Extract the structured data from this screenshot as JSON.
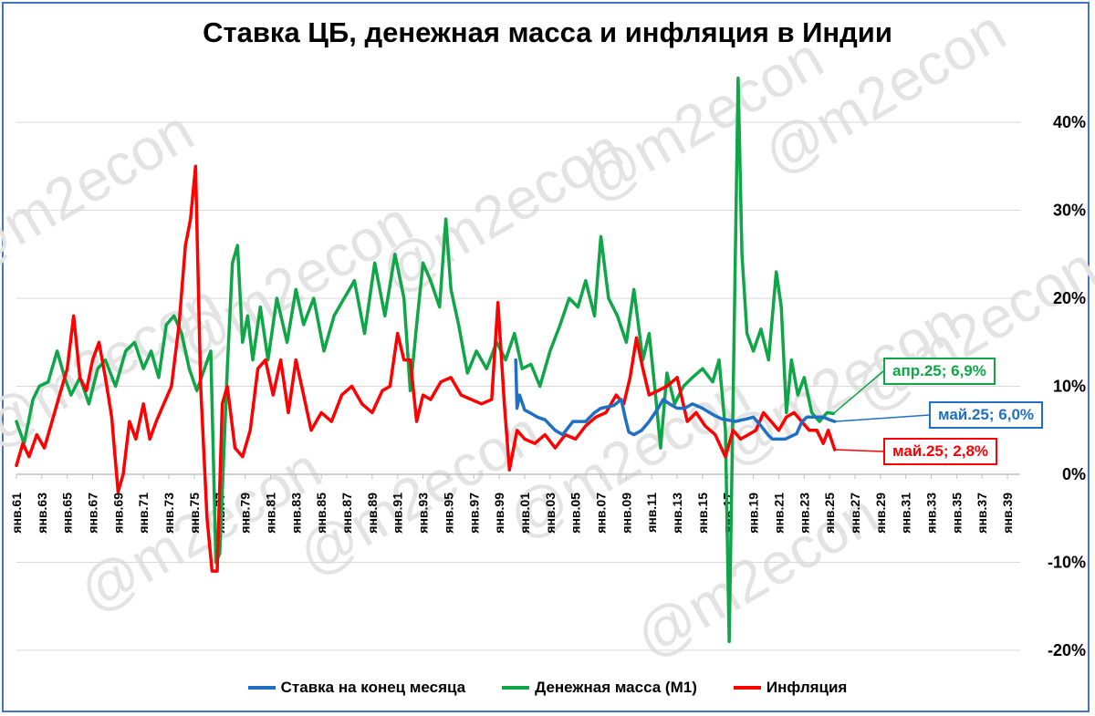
{
  "chart_data": {
    "type": "line",
    "title": "Ставка ЦБ, денежная масса и инфляция в Индии",
    "watermark": "@m2econ",
    "y_axis": {
      "position": "right",
      "ylim": [
        -20,
        45
      ],
      "ticks": [
        -20,
        -10,
        0,
        10,
        20,
        30,
        40
      ],
      "tick_labels": [
        "-20%",
        "-10%",
        "0%",
        "10%",
        "20%",
        "30%",
        "40%"
      ]
    },
    "x_axis": {
      "xlim": [
        1961.0,
        2040.0
      ],
      "tick_labels": [
        "янв.61",
        "янв.63",
        "янв.65",
        "янв.67",
        "янв.69",
        "янв.71",
        "янв.73",
        "янв.75",
        "янв.77",
        "янв.79",
        "янв.81",
        "янв.83",
        "янв.85",
        "янв.87",
        "янв.89",
        "янв.91",
        "янв.93",
        "янв.95",
        "янв.97",
        "янв.99",
        "янв.01",
        "янв.03",
        "янв.05",
        "янв.07",
        "янв.09",
        "янв.11",
        "янв.13",
        "янв.15",
        "янв.17",
        "янв.19",
        "янв.21",
        "янв.23",
        "янв.25",
        "янв.27",
        "янв.29",
        "янв.31",
        "янв.33",
        "янв.35",
        "янв.37",
        "янв.39"
      ],
      "tick_years": [
        1961,
        1963,
        1965,
        1967,
        1969,
        1971,
        1973,
        1975,
        1977,
        1979,
        1981,
        1983,
        1985,
        1987,
        1989,
        1991,
        1993,
        1995,
        1997,
        1999,
        2001,
        2003,
        2005,
        2007,
        2009,
        2011,
        2013,
        2015,
        2017,
        2019,
        2021,
        2023,
        2025,
        2027,
        2029,
        2031,
        2033,
        2035,
        2037,
        2039
      ]
    },
    "grid": "horizontal",
    "legend_position": "bottom",
    "series": [
      {
        "name": "Ставка на конец месяца",
        "color": "#1f6fc4",
        "x": [
          2000.3,
          2000.4,
          2000.6,
          2001.0,
          2001.4,
          2002.0,
          2002.6,
          2003.4,
          2004.0,
          2004.8,
          2005.8,
          2006.5,
          2007.0,
          2008.0,
          2008.6,
          2008.9,
          2009.2,
          2009.6,
          2010.2,
          2010.8,
          2011.5,
          2011.9,
          2012.4,
          2013.0,
          2013.6,
          2014.2,
          2015.0,
          2015.8,
          2016.5,
          2017.6,
          2018.5,
          2019.0,
          2019.6,
          2020.2,
          2020.5,
          2021.5,
          2022.4,
          2022.8,
          2023.2,
          2024.5,
          2025.0,
          2025.4
        ],
        "values": [
          13.0,
          7.5,
          9.0,
          7.3,
          7.0,
          6.5,
          6.2,
          5.0,
          4.5,
          6.0,
          6.0,
          7.0,
          7.5,
          7.8,
          8.5,
          6.5,
          4.8,
          4.5,
          5.0,
          6.0,
          7.5,
          8.5,
          8.0,
          7.5,
          7.5,
          8.0,
          7.5,
          6.8,
          6.3,
          6.0,
          6.3,
          6.5,
          5.5,
          4.4,
          4.0,
          4.0,
          4.6,
          5.9,
          6.5,
          6.5,
          6.2,
          6.0
        ]
      },
      {
        "name": "Денежная масса (М1)",
        "color": "#0fa648",
        "x": [
          1961.0,
          1961.6,
          1962.3,
          1962.8,
          1963.5,
          1964.2,
          1964.8,
          1965.3,
          1966.0,
          1966.7,
          1967.4,
          1968.0,
          1968.8,
          1969.6,
          1970.3,
          1971.0,
          1971.6,
          1972.2,
          1972.8,
          1973.4,
          1974.0,
          1974.6,
          1975.2,
          1975.8,
          1976.3,
          1976.7,
          1977.0,
          1977.6,
          1978.0,
          1978.4,
          1978.8,
          1979.2,
          1979.6,
          1980.2,
          1980.8,
          1981.5,
          1982.3,
          1983.0,
          1983.6,
          1984.4,
          1985.2,
          1986.0,
          1986.8,
          1987.6,
          1988.4,
          1989.2,
          1990.0,
          1990.8,
          1991.5,
          1992.0,
          1992.5,
          1993.0,
          1993.6,
          1994.3,
          1994.8,
          1995.2,
          1995.8,
          1996.5,
          1997.2,
          1998.0,
          1998.8,
          1999.5,
          2000.2,
          2000.8,
          2001.5,
          2002.2,
          2003.0,
          2003.8,
          2004.5,
          2005.2,
          2005.8,
          2006.5,
          2007.0,
          2007.6,
          2008.3,
          2009.0,
          2009.6,
          2010.3,
          2010.8,
          2011.3,
          2011.7,
          2012.2,
          2012.8,
          2013.5,
          2014.2,
          2015.0,
          2015.8,
          2016.3,
          2016.8,
          2017.1,
          2017.4,
          2017.8,
          2018.1,
          2018.5,
          2019.0,
          2019.6,
          2020.2,
          2020.8,
          2021.2,
          2021.6,
          2022.0,
          2022.5,
          2023.0,
          2023.6,
          2024.2,
          2024.8,
          2025.3
        ],
        "values": [
          6.0,
          3.5,
          8.5,
          10.0,
          10.5,
          14.0,
          11.0,
          9.0,
          11.0,
          8.0,
          12.0,
          13.0,
          10.0,
          14.0,
          15.0,
          12.0,
          14.0,
          11.0,
          17.0,
          18.0,
          16.0,
          12.0,
          9.5,
          12.0,
          14.0,
          -10.0,
          -9.0,
          12.0,
          24.0,
          26.0,
          15.0,
          18.0,
          13.0,
          19.0,
          13.0,
          20.0,
          15.0,
          21.0,
          17.0,
          20.0,
          14.0,
          18.0,
          20.0,
          22.0,
          16.0,
          24.0,
          18.0,
          25.0,
          20.0,
          9.5,
          17.0,
          24.0,
          22.0,
          19.0,
          29.0,
          21.0,
          17.0,
          11.5,
          14.0,
          12.0,
          15.0,
          13.0,
          16.0,
          12.0,
          12.5,
          10.0,
          14.0,
          17.0,
          20.0,
          19.0,
          22.0,
          18.0,
          27.0,
          20.0,
          18.0,
          15.0,
          21.0,
          13.0,
          16.0,
          9.0,
          3.0,
          11.5,
          8.0,
          10.0,
          11.0,
          12.0,
          10.5,
          13.0,
          5.0,
          -19.0,
          8.0,
          45.0,
          25.0,
          16.0,
          14.0,
          16.5,
          13.0,
          23.0,
          19.0,
          7.0,
          13.0,
          9.0,
          11.0,
          7.0,
          6.0,
          7.0,
          6.9
        ]
      },
      {
        "name": "Инфляция",
        "color": "#ff0000",
        "x": [
          1961.0,
          1961.5,
          1962.0,
          1962.6,
          1963.2,
          1963.8,
          1964.4,
          1965.0,
          1965.5,
          1966.0,
          1966.5,
          1967.0,
          1967.5,
          1968.0,
          1968.5,
          1969.0,
          1969.4,
          1969.9,
          1970.4,
          1971.0,
          1971.5,
          1972.0,
          1972.6,
          1973.2,
          1973.8,
          1974.3,
          1974.7,
          1975.1,
          1975.5,
          1976.0,
          1976.4,
          1976.8,
          1977.2,
          1977.6,
          1978.2,
          1978.8,
          1979.4,
          1980.0,
          1980.6,
          1981.2,
          1981.8,
          1982.4,
          1983.0,
          1983.6,
          1984.2,
          1985.0,
          1985.8,
          1986.6,
          1987.4,
          1988.2,
          1989.0,
          1989.8,
          1990.4,
          1991.0,
          1991.5,
          1992.0,
          1992.5,
          1993.0,
          1993.6,
          1994.4,
          1995.2,
          1996.0,
          1996.8,
          1997.6,
          1998.4,
          1998.9,
          1999.4,
          1999.8,
          2000.4,
          2001.0,
          2001.8,
          2002.6,
          2003.4,
          2004.2,
          2005.0,
          2005.8,
          2006.6,
          2007.4,
          2008.2,
          2008.8,
          2009.3,
          2009.8,
          2010.3,
          2010.8,
          2011.5,
          2012.2,
          2013.0,
          2013.8,
          2014.5,
          2015.2,
          2016.0,
          2016.8,
          2017.4,
          2018.0,
          2018.6,
          2019.2,
          2019.8,
          2020.4,
          2021.0,
          2021.6,
          2022.2,
          2022.8,
          2023.4,
          2024.0,
          2024.5,
          2024.9,
          2025.4
        ],
        "values": [
          1.0,
          3.5,
          2.0,
          4.5,
          3.0,
          6.0,
          9.0,
          12.0,
          18.0,
          11.0,
          9.5,
          13.0,
          15.0,
          11.0,
          6.5,
          -2.0,
          0.0,
          6.0,
          4.0,
          8.0,
          4.0,
          6.0,
          8.0,
          10.0,
          17.0,
          26.0,
          29.0,
          35.0,
          10.0,
          -5.0,
          -11.0,
          -11.0,
          8.0,
          10.0,
          3.0,
          2.0,
          5.0,
          12.0,
          13.0,
          9.0,
          13.0,
          7.0,
          13.0,
          9.0,
          5.0,
          7.0,
          6.0,
          9.0,
          10.0,
          8.0,
          7.0,
          9.5,
          10.0,
          16.0,
          13.0,
          13.0,
          6.0,
          9.0,
          8.5,
          10.5,
          11.0,
          9.0,
          8.5,
          8.0,
          8.5,
          19.5,
          8.0,
          0.5,
          5.0,
          4.0,
          3.5,
          4.5,
          3.0,
          4.5,
          4.0,
          5.5,
          6.5,
          7.0,
          9.0,
          8.0,
          11.0,
          15.5,
          12.0,
          9.0,
          9.5,
          10.0,
          11.0,
          6.0,
          7.0,
          5.5,
          4.5,
          2.0,
          5.0,
          4.0,
          4.5,
          5.0,
          7.0,
          6.0,
          5.0,
          6.5,
          7.0,
          6.0,
          5.0,
          5.0,
          3.5,
          5.0,
          2.8
        ]
      }
    ],
    "callouts": [
      {
        "text": "апр.25; 6,9%",
        "series": "Денежная масса (М1)",
        "x": 2025.3,
        "value": 6.9,
        "color": "#0fa648"
      },
      {
        "text": "май.25; 6,0%",
        "series": "Ставка на конец месяца",
        "x": 2025.4,
        "value": 6.0,
        "color": "#1f6fc4"
      },
      {
        "text": "май.25; 2,8%",
        "series": "Инфляция",
        "x": 2025.4,
        "value": 2.8,
        "color": "#ff0000"
      }
    ]
  }
}
